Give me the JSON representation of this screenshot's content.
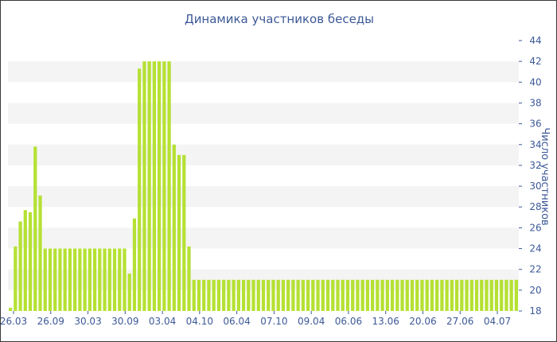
{
  "chart_data": {
    "type": "bar",
    "title": "Динамика участников беседы",
    "ylabel": "Число участников",
    "xlabel": "",
    "ylim": [
      18,
      44
    ],
    "yticks": [
      18,
      20,
      22,
      24,
      26,
      28,
      30,
      32,
      34,
      36,
      38,
      40,
      42,
      44
    ],
    "y_axis_side": "right",
    "grid": "alternating horizontal bands",
    "x_tick_labels": [
      "26.03",
      "26.09",
      "30.03",
      "30.09",
      "03.04",
      "04.10",
      "06.04",
      "07.10",
      "09.04",
      "06.06",
      "13.06",
      "20.06",
      "27.06",
      "04.07"
    ],
    "bar_color": "#b5e133",
    "values": [
      18.3,
      24.2,
      26.6,
      27.7,
      27.5,
      33.8,
      29.1,
      24,
      24,
      24,
      24,
      24,
      24,
      24,
      24,
      24,
      24,
      24,
      24,
      24,
      24,
      24,
      24,
      24,
      21.6,
      26.9,
      41.3,
      42,
      42,
      42,
      42,
      42,
      42,
      34,
      33,
      33,
      24.2,
      21,
      21,
      21,
      21,
      21,
      21,
      21,
      21,
      21,
      21,
      21,
      21,
      21,
      21,
      21,
      21,
      21,
      21,
      21,
      21,
      21,
      21,
      21,
      21,
      21,
      21,
      21,
      21,
      21,
      21,
      21,
      21,
      21,
      21,
      21,
      21,
      21,
      21,
      21,
      21,
      21,
      21,
      21,
      21,
      21,
      21,
      21,
      21,
      21,
      21,
      21,
      21,
      21,
      21,
      21,
      21,
      21,
      21,
      21,
      21,
      21,
      21,
      21,
      21,
      21,
      21
    ]
  }
}
